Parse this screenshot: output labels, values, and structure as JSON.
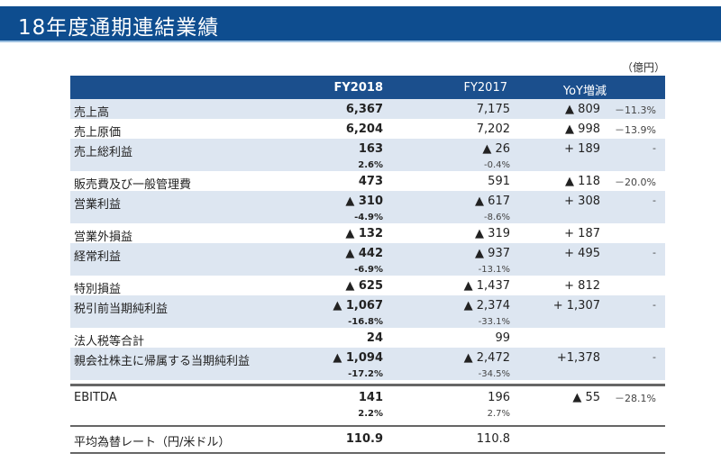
{
  "title": "18年度通期連結業績",
  "unit": "（億円）",
  "header": {
    "label": "",
    "fy2018": "FY2018",
    "fy2017": "FY2017",
    "yoy": "YoY増減"
  },
  "rows": [
    {
      "label": "売上高",
      "fy2018": "6,367",
      "fy2017": "7,175",
      "yoy": "▲ 809",
      "pct": "－11.3%"
    },
    {
      "label": "売上原価",
      "fy2018": "6,204",
      "fy2017": "7,202",
      "yoy": "▲ 998",
      "pct": "－13.9%"
    },
    {
      "label": "売上総利益",
      "fy2018": "163",
      "fy2017": "▲ 26",
      "yoy": "+ 189",
      "pct": "-",
      "fy2018_margin": "2.6%",
      "fy2017_margin": "-0.4%"
    },
    {
      "label": "販売費及び一般管理費",
      "fy2018": "473",
      "fy2017": "591",
      "yoy": "▲ 118",
      "pct": "－20.0%"
    },
    {
      "label": "営業利益",
      "fy2018": "▲ 310",
      "fy2017": "▲ 617",
      "yoy": "+ 308",
      "pct": "-",
      "fy2018_margin": "-4.9%",
      "fy2017_margin": "-8.6%"
    },
    {
      "label": "営業外損益",
      "fy2018": "▲ 132",
      "fy2017": "▲ 319",
      "yoy": "+ 187",
      "pct": ""
    },
    {
      "label": "経常利益",
      "fy2018": "▲ 442",
      "fy2017": "▲ 937",
      "yoy": "+ 495",
      "pct": "-",
      "fy2018_margin": "-6.9%",
      "fy2017_margin": "-13.1%"
    },
    {
      "label": "特別損益",
      "fy2018": "▲ 625",
      "fy2017": "▲ 1,437",
      "yoy": "+ 812",
      "pct": ""
    },
    {
      "label": "税引前当期純利益",
      "fy2018": "▲ 1,067",
      "fy2017": "▲ 2,374",
      "yoy": "+ 1,307",
      "pct": "-",
      "fy2018_margin": "-16.8%",
      "fy2017_margin": "-33.1%"
    },
    {
      "label": "法人税等合計",
      "fy2018": "24",
      "fy2017": "99",
      "yoy": "",
      "pct": ""
    },
    {
      "label": "親会社株主に帰属する当期純利益",
      "fy2018": "▲ 1,094",
      "fy2017": "▲ 2,472",
      "yoy": "+1,378",
      "pct": "-",
      "fy2018_margin": "-17.2%",
      "fy2017_margin": "-34.5%"
    }
  ],
  "ebitda": {
    "label": "EBITDA",
    "fy2018": "141",
    "fy2017": "196",
    "yoy": "▲ 55",
    "pct": "－28.1%",
    "fy2018_margin": "2.2%",
    "fy2017_margin": "2.7%"
  },
  "fx": {
    "label": "平均為替レート（円/米ドル）",
    "fy2018": "110.9",
    "fy2017": "110.8"
  },
  "colors": {
    "title_bg": "#0e4d8f",
    "header_bg": "#1b4f8d",
    "row_shade": "#dde6f1"
  }
}
